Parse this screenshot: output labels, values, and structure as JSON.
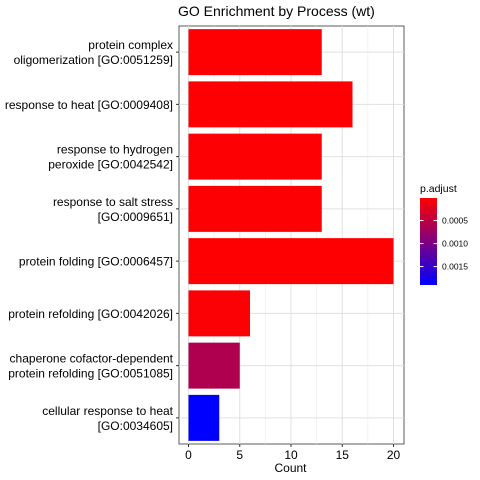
{
  "chart_data": {
    "type": "bar",
    "orientation": "horizontal",
    "title": "GO Enrichment by Process (wt)",
    "xlabel": "Count",
    "ylabel": "",
    "xlim": [
      0,
      20.5
    ],
    "xticks": [
      0,
      5,
      10,
      15,
      20
    ],
    "grid": true,
    "categories": [
      [
        "protein complex",
        "oligomerization [GO:0051259]"
      ],
      [
        "response to heat [GO:0009408]"
      ],
      [
        "response to hydrogen",
        "peroxide [GO:0042542]"
      ],
      [
        "response to salt stress",
        "[GO:0009651]"
      ],
      [
        "protein folding [GO:0006457]"
      ],
      [
        "protein refolding [GO:0042026]"
      ],
      [
        "chaperone cofactor-dependent",
        "protein refolding [GO:0051085]"
      ],
      [
        "cellular response to heat",
        "[GO:0034605]"
      ]
    ],
    "values": [
      13,
      16,
      13,
      13,
      20,
      6,
      5,
      3
    ],
    "p_adjust": [
      2e-05,
      2e-05,
      3e-05,
      3e-05,
      2e-05,
      4e-05,
      0.0006,
      0.0019
    ],
    "legend": {
      "title": "p.adjust",
      "placement": "right",
      "range": [
        1e-05,
        0.0019
      ],
      "ticks": [
        {
          "value": 0.0005,
          "label": "0.0005"
        },
        {
          "value": 0.001,
          "label": "0.0010"
        },
        {
          "value": 0.0015,
          "label": "0.0015"
        }
      ],
      "color_low": "#FF0000",
      "color_high": "#0000FF"
    }
  }
}
